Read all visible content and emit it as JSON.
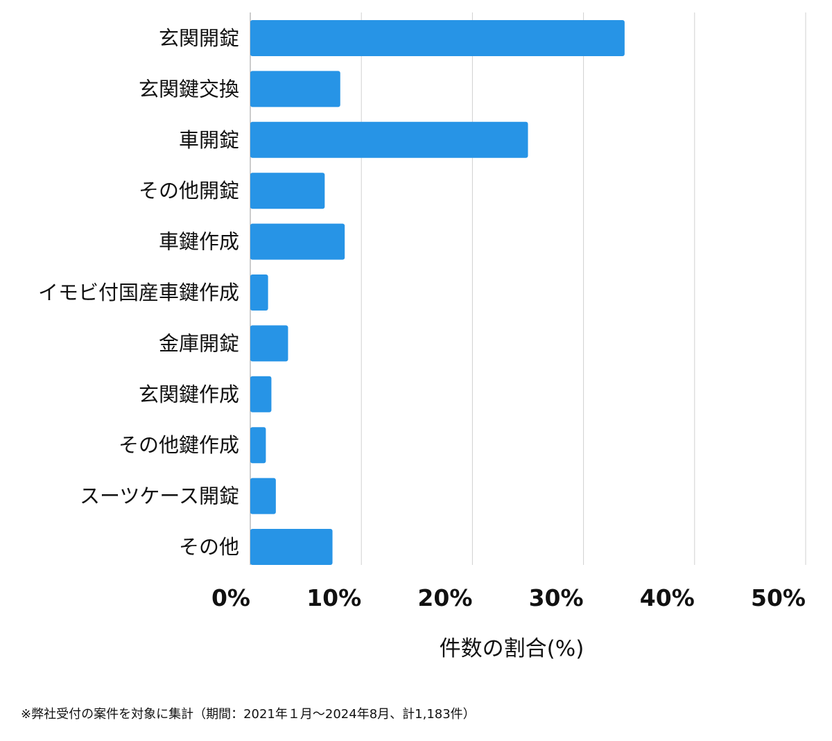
{
  "chart_data": {
    "type": "bar",
    "orientation": "horizontal",
    "categories": [
      "玄関開錠",
      "玄関鍵交換",
      "車開錠",
      "その他開錠",
      "車鍵作成",
      "イモビ付国産車鍵作成",
      "金庫開錠",
      "玄関鍵作成",
      "その他鍵作成",
      "スーツケース開錠",
      "その他"
    ],
    "values": [
      33.7,
      8.1,
      25.0,
      6.7,
      8.5,
      1.6,
      3.4,
      1.9,
      1.4,
      2.3,
      7.4
    ],
    "xlabel": "件数の割合(%)",
    "xlim": [
      0,
      50
    ],
    "xticks": [
      "0%",
      "10%",
      "20%",
      "30%",
      "40%",
      "50%"
    ],
    "grid": true,
    "bar_color": "#2794e6",
    "grid_color": "#d0d0d0"
  },
  "footnote": "※弊社受付の案件を対象に集計（期間：2021年１月〜2024年8月、計1,183件）"
}
